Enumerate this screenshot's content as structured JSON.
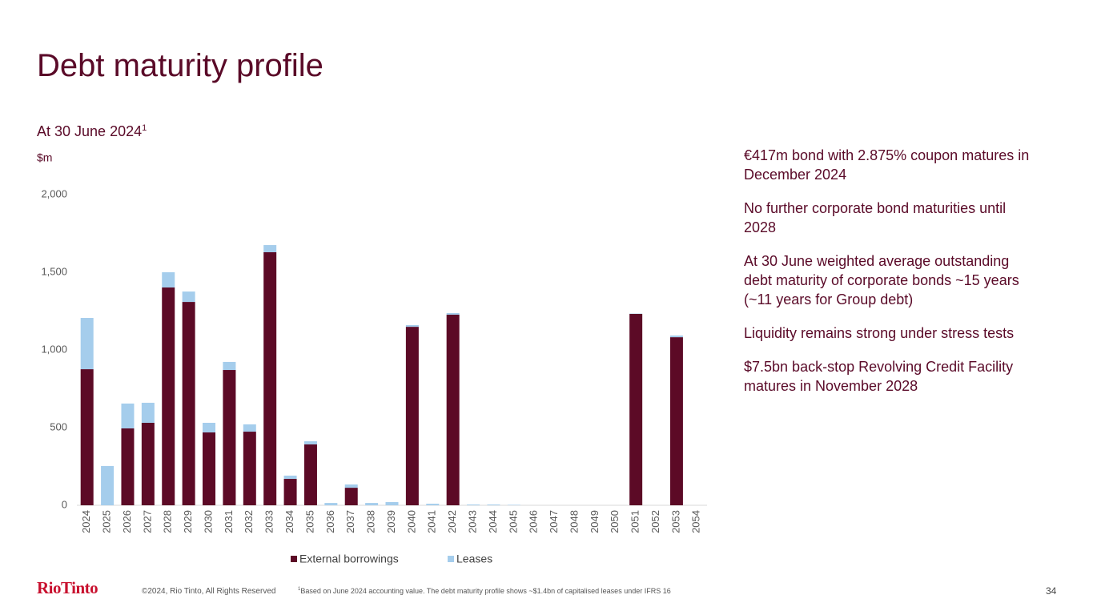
{
  "chart_data": {
    "type": "stacked-bar",
    "title": "Debt maturity profile",
    "subtitle": "At 30 June 2024",
    "subtitle_footnote_marker": "1",
    "y_label": "$m",
    "categories": [
      "2024",
      "2025",
      "2026",
      "2027",
      "2028",
      "2029",
      "2030",
      "2031",
      "2032",
      "2033",
      "2034",
      "2035",
      "2036",
      "2037",
      "2038",
      "2039",
      "2040",
      "2041",
      "2042",
      "2043",
      "2044",
      "2045",
      "2046",
      "2047",
      "2048",
      "2049",
      "2050",
      "2051",
      "2052",
      "2053",
      "2054"
    ],
    "series": [
      {
        "name": "External borrowings",
        "color": "#5c0a26",
        "values": [
          876,
          0,
          495,
          531,
          1402,
          1309,
          469,
          871,
          474,
          1629,
          170,
          392,
          0,
          113,
          0,
          0,
          1149,
          0,
          1227,
          0,
          0,
          0,
          0,
          0,
          0,
          0,
          0,
          1232,
          0,
          1082,
          0
        ]
      },
      {
        "name": "Leases",
        "color": "#a5cdec",
        "values": [
          330,
          253,
          160,
          129,
          98,
          67,
          62,
          52,
          47,
          46,
          21,
          20,
          15,
          21,
          15,
          21,
          11,
          10,
          10,
          5,
          5,
          3,
          0,
          0,
          0,
          0,
          0,
          2,
          0,
          11,
          0
        ]
      }
    ],
    "ylim": [
      0,
      2000
    ],
    "yticks": [
      0,
      500,
      {
        "value": 1000,
        "label": "1,000"
      },
      {
        "value": 1500,
        "label": "1,500"
      },
      {
        "value": 2000,
        "label": "2,000"
      }
    ],
    "grid": false,
    "legend": "bottom"
  },
  "commentary": [
    "€417m bond with 2.875% coupon matures in December 2024",
    "No further corporate bond maturities until 2028",
    "At 30 June weighted average outstanding debt maturity of corporate bonds ~15 years (~11 years for Group debt)",
    "Liquidity remains strong under stress tests",
    "$7.5bn back-stop Revolving Credit Facility matures in November 2028"
  ],
  "footer": {
    "logo": "RioTinto",
    "copyright": "©2024, Rio Tinto, All Rights Reserved",
    "footnote_marker": "1",
    "footnote": "Based on June 2024 accounting value. The debt maturity profile shows ~$1.4bn of capitalised leases under IFRS 16",
    "page_number": "34"
  }
}
